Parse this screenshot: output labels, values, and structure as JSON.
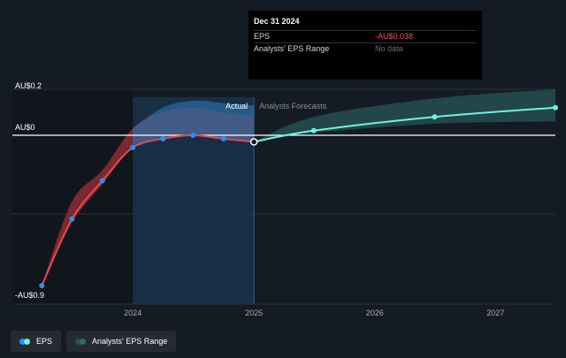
{
  "tooltip": {
    "date": "Dec 31 2024",
    "rows": [
      {
        "label": "EPS",
        "value": "-AU$0.038",
        "color": "#f2545b"
      },
      {
        "label": "Analysts' EPS Range",
        "value": "No data",
        "color": "#6b7079"
      }
    ]
  },
  "legend": {
    "eps_label": "EPS",
    "range_label": "Analysts' EPS Range"
  },
  "colors": {
    "background": "#151b24",
    "actual_shade": "#1a3550",
    "eps_actual": "#e8474f",
    "eps_forecast": "#6ff2e0",
    "dot_actual": "#2f8ff5",
    "range_band": "#2e6a68"
  },
  "chart_data": {
    "type": "line",
    "y_tick_labels": [
      "AU$0.2",
      "AU$0",
      "-AU$0.9"
    ],
    "x_tick_labels": [
      "2024",
      "2025",
      "2026",
      "2027"
    ],
    "ylim": [
      -0.9,
      0.2
    ],
    "xlim": [
      "2023-01-01",
      "2027-06-30"
    ],
    "section_labels": {
      "actual": "Actual",
      "forecast": "Analysts Forecasts"
    },
    "series": [
      {
        "name": "EPS",
        "role": "actual",
        "x": [
          "2023-03-31",
          "2023-06-30",
          "2023-09-30",
          "2023-12-31",
          "2024-03-31",
          "2024-06-30",
          "2024-09-30",
          "2024-12-31"
        ],
        "y": [
          -0.86,
          -0.48,
          -0.26,
          -0.07,
          -0.02,
          0.0,
          -0.02,
          -0.038
        ]
      },
      {
        "name": "EPS",
        "role": "forecast",
        "x": [
          "2024-12-31",
          "2025-06-30",
          "2026-06-30",
          "2027-06-30"
        ],
        "y": [
          -0.038,
          0.02,
          0.08,
          0.12
        ]
      }
    ],
    "range_band": {
      "x": [
        "2024-12-31",
        "2025-06-30",
        "2026-06-30",
        "2027-06-30"
      ],
      "low": [
        -0.038,
        0.01,
        0.05,
        0.06
      ],
      "high": [
        -0.038,
        0.08,
        0.16,
        0.2
      ]
    },
    "actual_area": {
      "x": [
        "2023-03-31",
        "2023-06-30",
        "2023-09-30",
        "2023-12-31",
        "2024-03-31",
        "2024-06-30",
        "2024-09-30",
        "2024-12-31"
      ],
      "low": [
        -0.86,
        -0.5,
        -0.28,
        -0.07,
        -0.02,
        0.0,
        -0.02,
        -0.038
      ],
      "high": [
        -0.86,
        -0.36,
        -0.2,
        0.03,
        0.12,
        0.15,
        0.14,
        0.13
      ]
    }
  }
}
